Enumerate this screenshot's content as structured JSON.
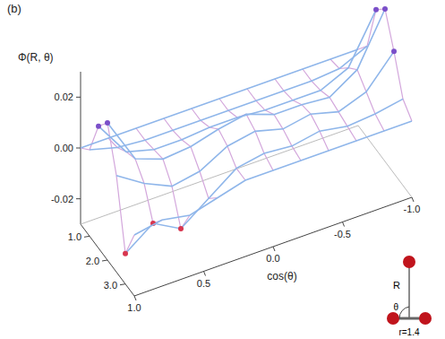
{
  "chart_data": {
    "type": "surface",
    "title": "(b)",
    "z_label": "Φ(R, θ)",
    "x_label": "cos(θ)",
    "x": [
      1.0,
      0.8,
      0.6,
      0.4,
      0.2,
      0.0,
      -0.2,
      -0.4,
      -0.6,
      -0.8,
      -1.0
    ],
    "y": [
      0.5,
      1.0,
      1.5,
      2.0,
      2.5,
      3.0,
      3.5
    ],
    "z": [
      [
        0,
        0,
        0,
        0,
        0,
        0,
        0,
        0,
        0,
        0,
        0
      ],
      [
        0.004,
        0.001,
        0,
        0,
        0,
        0,
        0,
        0,
        0,
        0.001,
        0.006
      ],
      [
        0.018,
        0.004,
        0.001,
        0.001,
        0.002,
        0.002,
        0.001,
        0.001,
        0.001,
        0.006,
        0.025
      ],
      [
        0.024,
        0.006,
        0.002,
        0.003,
        0.006,
        0.008,
        0.004,
        0.004,
        0.003,
        0.01,
        0.03
      ],
      [
        0.008,
        0.001,
        -0.004,
        -0.002,
        0.004,
        0.006,
        0.003,
        0.005,
        0.002,
        0.006,
        0.018
      ],
      [
        -0.018,
        -0.01,
        -0.016,
        -0.008,
        0.0,
        0.002,
        0.001,
        0.003,
        0.001,
        0.002,
        0.004
      ],
      [
        -0.006,
        -0.004,
        -0.006,
        -0.003,
        0,
        0,
        0,
        0,
        0,
        0,
        0
      ]
    ],
    "xlim": [
      1.0,
      -1.0
    ],
    "xticks": [
      {
        "value": 1.0,
        "label": "1.0"
      },
      0.5,
      {
        "value": 0.0,
        "label": "0.0"
      },
      -0.5,
      {
        "value": -1.0,
        "label": "-1.0"
      }
    ],
    "ylim": [
      0.5,
      3.5
    ],
    "yticks": [
      {
        "value": 1.0,
        "label": "1.0"
      },
      {
        "value": 2.0,
        "label": "2.0"
      },
      {
        "value": 3.0,
        "label": "3.0"
      }
    ],
    "zlim": [
      -0.03,
      0.03
    ],
    "zticks": [
      -0.02,
      {
        "value": 0.0,
        "label": "0.00"
      },
      0.02
    ],
    "inset": {
      "R_label": "R",
      "angle_label": "θ",
      "bond_label": "r=1.4"
    }
  }
}
